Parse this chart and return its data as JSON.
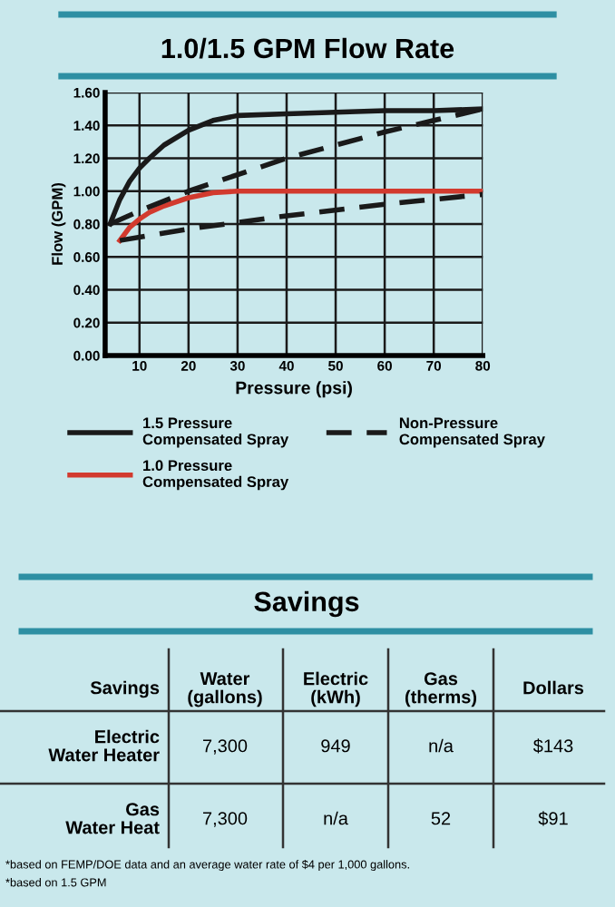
{
  "chart_data": [
    {
      "type": "line",
      "title": "1.0/1.5 GPM Flow Rate",
      "xlabel": "Pressure (psi)",
      "ylabel": "Flow (GPM)",
      "xlim": [
        3,
        80
      ],
      "ylim": [
        0,
        1.6
      ],
      "xticks": [
        10,
        20,
        30,
        40,
        50,
        60,
        70,
        80
      ],
      "yticks": [
        {
          "value": 0,
          "label": "0.00"
        },
        {
          "value": 0.2,
          "label": "0.20"
        },
        {
          "value": 0.4,
          "label": "0.40"
        },
        {
          "value": 0.6,
          "label": "0.60"
        },
        {
          "value": 0.8,
          "label": "0.80"
        },
        {
          "value": 1.0,
          "label": "1.00"
        },
        {
          "value": 1.2,
          "label": "1.20"
        },
        {
          "value": 1.4,
          "label": "1.40"
        },
        {
          "value": 1.6,
          "label": "1.60"
        }
      ],
      "grid": true,
      "legend": "bottom",
      "marker": "none",
      "series": [
        {
          "name": "1.5 Pressure\nCompensated Spray",
          "color": "#1a1a1a",
          "line_style": "solid",
          "x": [
            4,
            6,
            8,
            10,
            12,
            15,
            20,
            25,
            30,
            40,
            50,
            60,
            70,
            80
          ],
          "values": [
            0.8,
            0.95,
            1.06,
            1.14,
            1.2,
            1.28,
            1.37,
            1.43,
            1.46,
            1.47,
            1.48,
            1.49,
            1.49,
            1.5
          ]
        },
        {
          "name": "1.0 Pressure\nCompensated Spray",
          "color": "#d23a2e",
          "line_style": "solid",
          "x": [
            6,
            8,
            10,
            12,
            15,
            20,
            25,
            30,
            40,
            60,
            80
          ],
          "values": [
            0.7,
            0.78,
            0.83,
            0.87,
            0.91,
            0.96,
            0.99,
            1.0,
            1.0,
            1.0,
            1.0
          ]
        },
        {
          "name": "Non-Pressure\nCompensated Spray",
          "color": "#1a1a1a",
          "line_style": "dashed",
          "x": [
            4,
            10,
            20,
            30,
            40,
            50,
            60,
            70,
            80
          ],
          "values": [
            0.8,
            0.88,
            1.0,
            1.1,
            1.2,
            1.28,
            1.36,
            1.43,
            1.5
          ]
        },
        {
          "color": "#1a1a1a",
          "line_style": "dashed",
          "x": [
            6,
            20,
            40,
            60,
            80
          ],
          "values": [
            0.7,
            0.77,
            0.85,
            0.92,
            0.98
          ]
        }
      ]
    },
    {
      "type": "other",
      "title": "Savings",
      "annotations": [
        "Savings",
        "Water\n(gallons)",
        "Electric\n(kWh)",
        "Gas\n(therms)",
        "Dollars",
        "Electric\nWater Heater",
        "7,300",
        "949",
        "n/a",
        "$143",
        "Gas\nWater Heat",
        "7,300",
        "n/a",
        "52",
        "$91",
        "*based on FEMP/DOE data and an average water rate of $4 per 1,000 gallons.",
        "*based on 1.5 GPM"
      ]
    }
  ]
}
